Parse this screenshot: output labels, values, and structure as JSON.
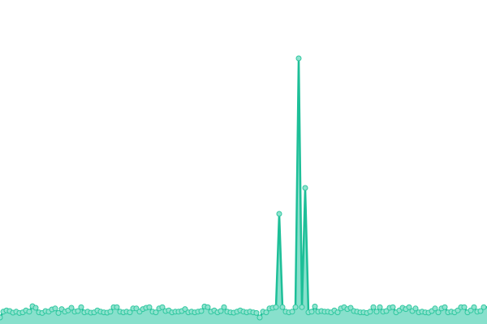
{
  "chart_data": {
    "type": "area",
    "title": "",
    "xlabel": "",
    "ylabel": "",
    "axes_visible": false,
    "grid": false,
    "legend": "none",
    "ylim": [
      0,
      100
    ],
    "colors": {
      "line": "#1dbf98",
      "fill": "#88e0cc",
      "marker_fill": "#8fe3cf",
      "marker_stroke": "#2fc79f"
    },
    "series": [
      {
        "values": [
          2.0,
          3.8,
          4.2,
          4.0,
          3.5,
          3.8,
          3.4,
          3.6,
          4.2,
          3.8,
          5.5,
          5.0,
          3.6,
          3.4,
          4.0,
          3.8,
          4.5,
          4.8,
          3.4,
          4.6,
          3.8,
          4.2,
          5.0,
          3.8,
          4.0,
          5.2,
          3.6,
          3.8,
          3.5,
          3.6,
          4.2,
          3.8,
          3.6,
          3.5,
          3.8,
          5.2,
          5.2,
          3.8,
          3.6,
          3.8,
          3.6,
          4.8,
          4.8,
          3.8,
          4.6,
          5.0,
          5.2,
          3.8,
          3.6,
          4.8,
          5.2,
          4.0,
          4.2,
          3.6,
          3.8,
          3.8,
          4.0,
          4.6,
          3.6,
          3.8,
          3.6,
          3.8,
          4.0,
          5.4,
          5.2,
          3.8,
          4.2,
          3.6,
          4.0,
          5.2,
          3.8,
          3.6,
          3.5,
          3.8,
          4.2,
          3.8,
          3.6,
          3.8,
          3.6,
          3.4,
          2.0,
          3.8,
          3.6,
          4.8,
          5.0,
          5.2,
          34,
          5.2,
          3.8,
          3.6,
          3.8,
          5.2,
          82,
          5.2,
          42,
          3.6,
          3.8,
          5.4,
          3.8,
          4.0,
          3.8,
          3.8,
          3.6,
          4.2,
          3.6,
          4.8,
          5.2,
          4.6,
          5.0,
          4.0,
          3.8,
          3.6,
          3.6,
          3.4,
          3.8,
          5.2,
          3.8,
          5.2,
          3.8,
          4.0,
          5.0,
          5.2,
          3.6,
          4.2,
          5.0,
          4.6,
          5.2,
          4.0,
          4.8,
          3.6,
          3.8,
          3.6,
          3.5,
          4.0,
          4.8,
          3.6,
          4.8,
          5.2,
          3.6,
          3.8,
          3.6,
          4.2,
          5.2,
          5.2,
          3.6,
          4.2,
          5.2,
          3.8,
          4.0,
          5.2
        ]
      }
    ]
  }
}
